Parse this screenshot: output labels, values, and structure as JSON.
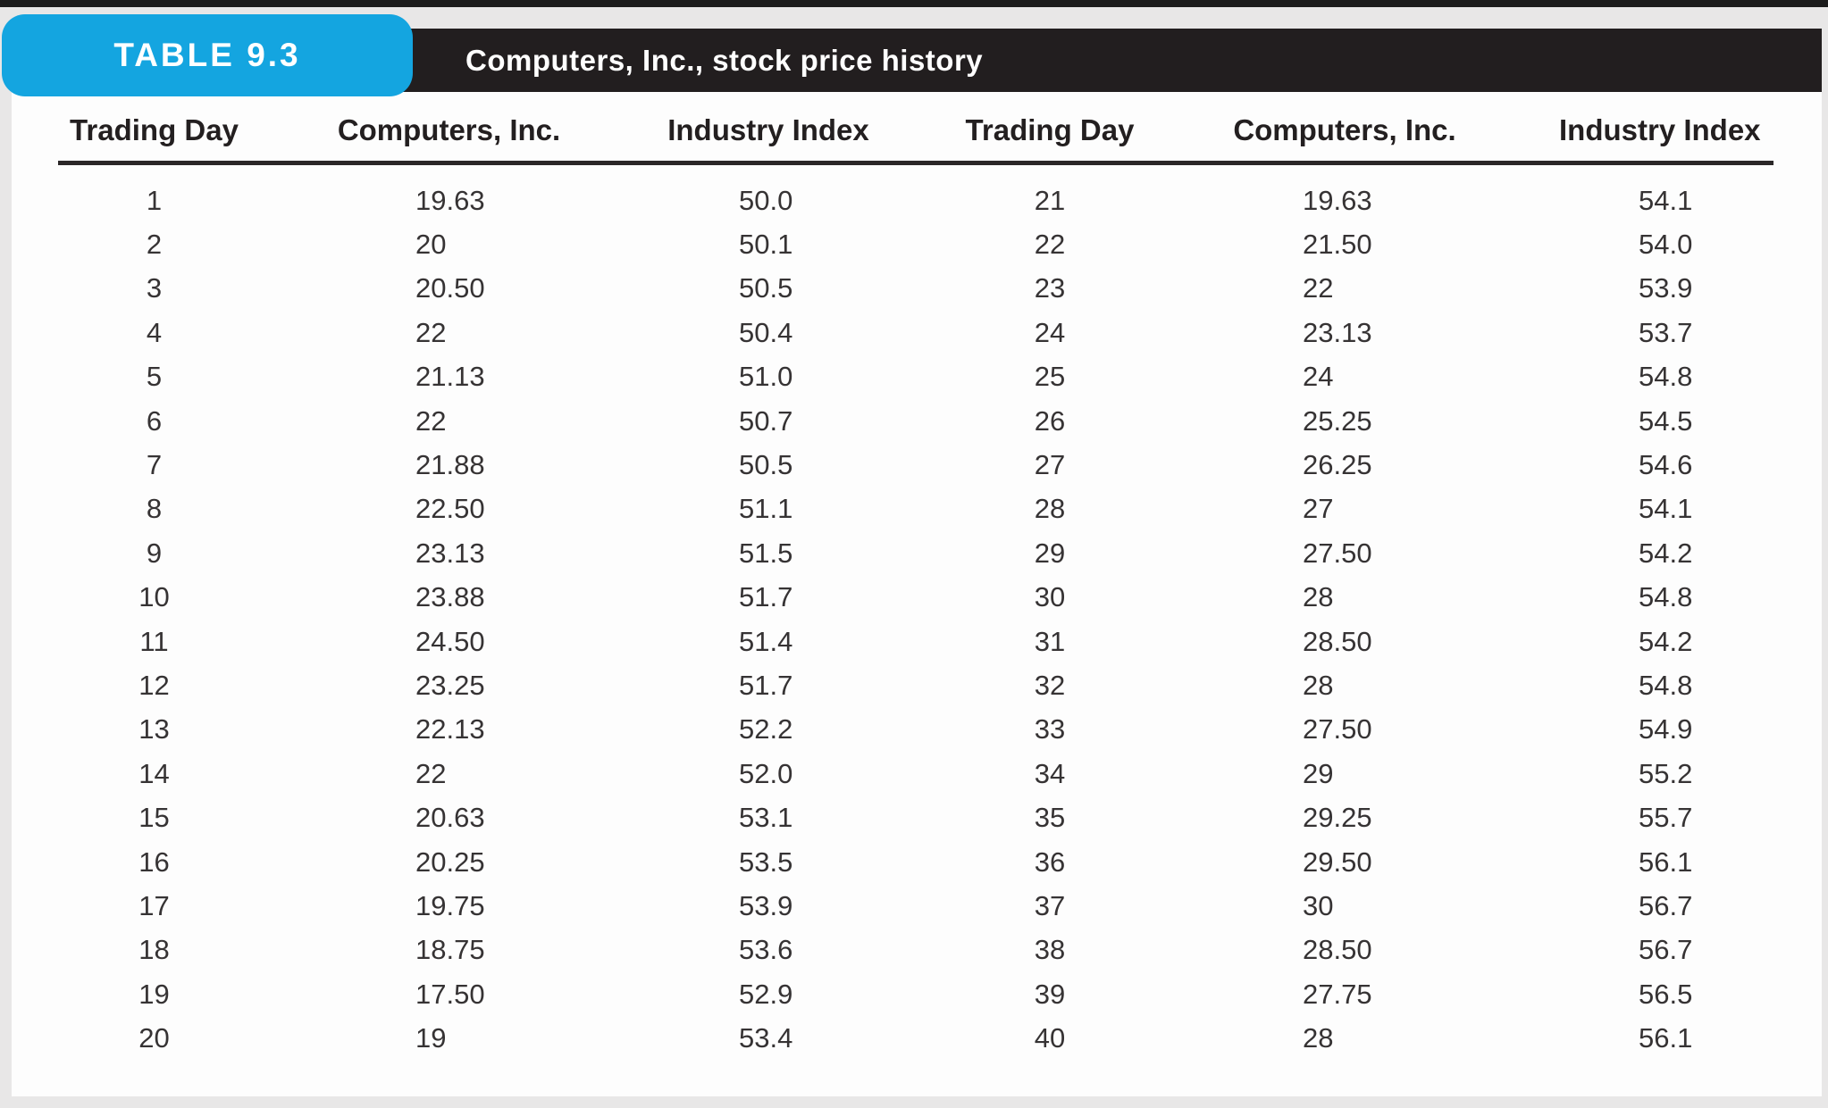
{
  "table": {
    "badge_label": "TABLE 9.3",
    "title": "Computers, Inc., stock price history",
    "columns": [
      "Trading Day",
      "Computers, Inc.",
      "Industry Index",
      "Trading Day",
      "Computers, Inc.",
      "Industry Index"
    ],
    "rows": [
      [
        "1",
        "19.63",
        "50.0",
        "21",
        "19.63",
        "54.1"
      ],
      [
        "2",
        "20",
        "50.1",
        "22",
        "21.50",
        "54.0"
      ],
      [
        "3",
        "20.50",
        "50.5",
        "23",
        "22",
        "53.9"
      ],
      [
        "4",
        "22",
        "50.4",
        "24",
        "23.13",
        "53.7"
      ],
      [
        "5",
        "21.13",
        "51.0",
        "25",
        "24",
        "54.8"
      ],
      [
        "6",
        "22",
        "50.7",
        "26",
        "25.25",
        "54.5"
      ],
      [
        "7",
        "21.88",
        "50.5",
        "27",
        "26.25",
        "54.6"
      ],
      [
        "8",
        "22.50",
        "51.1",
        "28",
        "27",
        "54.1"
      ],
      [
        "9",
        "23.13",
        "51.5",
        "29",
        "27.50",
        "54.2"
      ],
      [
        "10",
        "23.88",
        "51.7",
        "30",
        "28",
        "54.8"
      ],
      [
        "11",
        "24.50",
        "51.4",
        "31",
        "28.50",
        "54.2"
      ],
      [
        "12",
        "23.25",
        "51.7",
        "32",
        "28",
        "54.8"
      ],
      [
        "13",
        "22.13",
        "52.2",
        "33",
        "27.50",
        "54.9"
      ],
      [
        "14",
        "22",
        "52.0",
        "34",
        "29",
        "55.2"
      ],
      [
        "15",
        "20.63",
        "53.1",
        "35",
        "29.25",
        "55.7"
      ],
      [
        "16",
        "20.25",
        "53.5",
        "36",
        "29.50",
        "56.1"
      ],
      [
        "17",
        "19.75",
        "53.9",
        "37",
        "30",
        "56.7"
      ],
      [
        "18",
        "18.75",
        "53.6",
        "38",
        "28.50",
        "56.7"
      ],
      [
        "19",
        "17.50",
        "52.9",
        "39",
        "27.75",
        "56.5"
      ],
      [
        "20",
        "19",
        "53.4",
        "40",
        "28",
        "56.1"
      ]
    ]
  },
  "chart_data": {
    "type": "table",
    "title": "Computers, Inc., stock price history",
    "x": [
      1,
      2,
      3,
      4,
      5,
      6,
      7,
      8,
      9,
      10,
      11,
      12,
      13,
      14,
      15,
      16,
      17,
      18,
      19,
      20,
      21,
      22,
      23,
      24,
      25,
      26,
      27,
      28,
      29,
      30,
      31,
      32,
      33,
      34,
      35,
      36,
      37,
      38,
      39,
      40
    ],
    "xlabel": "Trading Day",
    "series": [
      {
        "name": "Computers, Inc.",
        "values": [
          19.63,
          20,
          20.5,
          22,
          21.13,
          22,
          21.88,
          22.5,
          23.13,
          23.88,
          24.5,
          23.25,
          22.13,
          22,
          20.63,
          20.25,
          19.75,
          18.75,
          17.5,
          19,
          19.63,
          21.5,
          22,
          23.13,
          24,
          25.25,
          26.25,
          27,
          27.5,
          28,
          28.5,
          28,
          27.5,
          29,
          29.25,
          29.5,
          30,
          28.5,
          27.75,
          28
        ]
      },
      {
        "name": "Industry Index",
        "values": [
          50.0,
          50.1,
          50.5,
          50.4,
          51.0,
          50.7,
          50.5,
          51.1,
          51.5,
          51.7,
          51.4,
          51.7,
          52.2,
          52.0,
          53.1,
          53.5,
          53.9,
          53.6,
          52.9,
          53.4,
          54.1,
          54.0,
          53.9,
          53.7,
          54.8,
          54.5,
          54.6,
          54.1,
          54.2,
          54.8,
          54.2,
          54.8,
          54.9,
          55.2,
          55.7,
          56.1,
          56.7,
          56.7,
          56.5,
          56.1
        ]
      }
    ]
  },
  "colors": {
    "badge_blue": "#14a5e0",
    "bar_black": "#221e1f",
    "page_background": "#e8e7e7",
    "panel_white": "#fdfdfd",
    "text_dark": "#231f20"
  }
}
